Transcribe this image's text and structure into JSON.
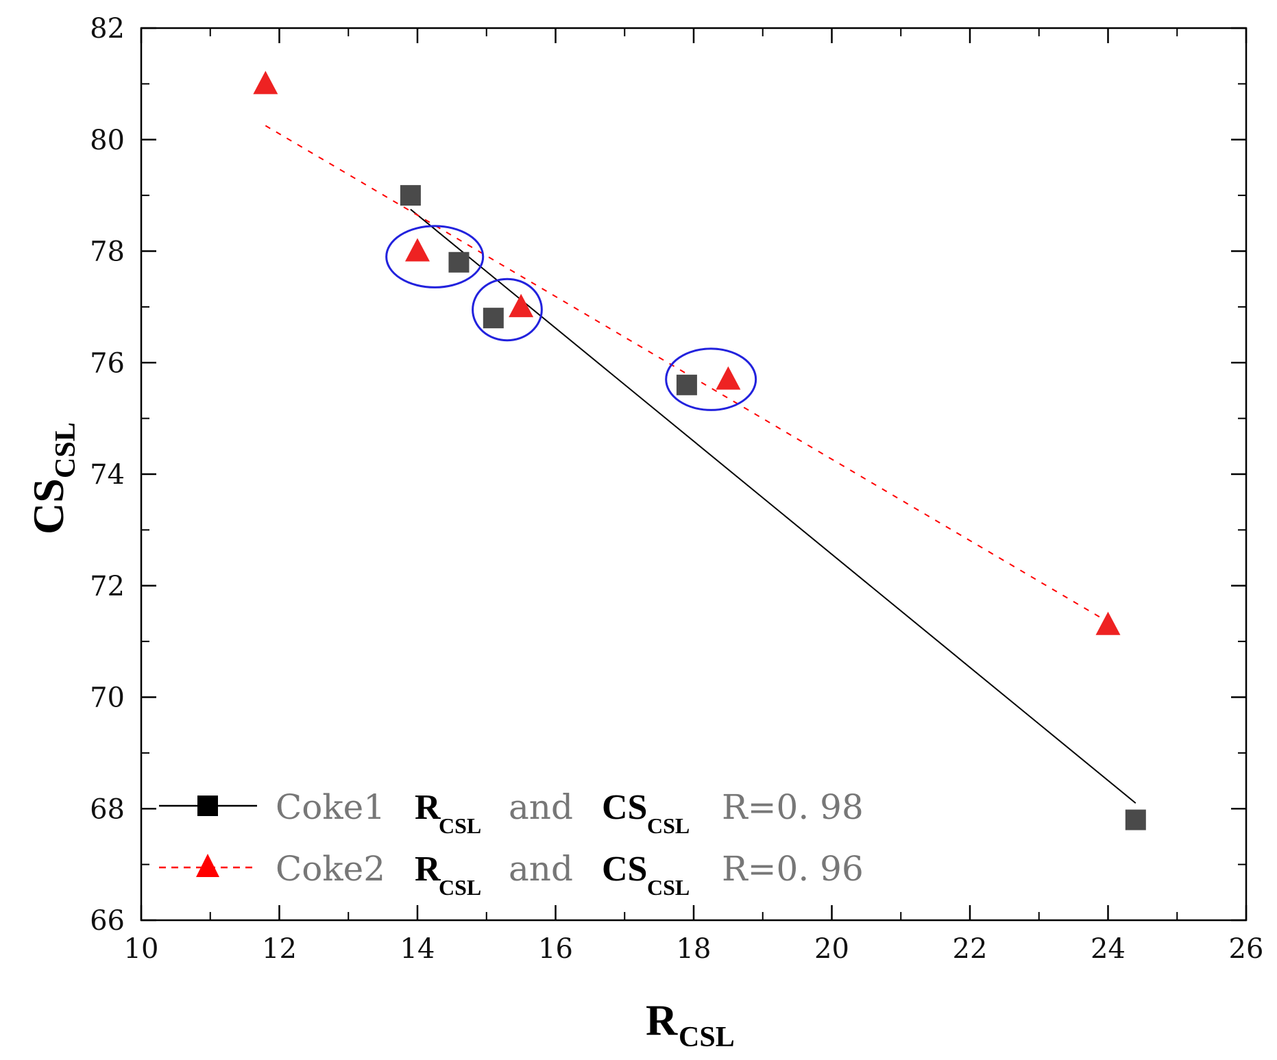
{
  "chart_data": {
    "type": "scatter",
    "title": "",
    "xlabel": {
      "main": "R",
      "sub": "CSL"
    },
    "ylabel": {
      "main": "CS",
      "sub": "CSL"
    },
    "xlim": [
      10,
      26
    ],
    "ylim": [
      66,
      82
    ],
    "xticks": [
      10,
      12,
      14,
      16,
      18,
      20,
      22,
      24,
      26
    ],
    "yticks": [
      66,
      68,
      70,
      72,
      74,
      76,
      78,
      80,
      82
    ],
    "grid": false,
    "legend_position": "bottom-left",
    "series": [
      {
        "name": "Coke1",
        "marker": "square",
        "color": "#4a4a4a",
        "line_color": "#000000",
        "line_style": "solid",
        "x": [
          13.9,
          14.6,
          15.1,
          17.9,
          24.4
        ],
        "y": [
          79.0,
          77.8,
          76.8,
          75.6,
          67.8
        ],
        "fit_line": {
          "x": [
            13.9,
            24.4
          ],
          "y": [
            78.75,
            68.1
          ]
        },
        "legend": {
          "name": "Coke1",
          "r_main": "R",
          "r_sub": "CSL",
          "and": "and",
          "cs_main": "CS",
          "cs_sub": "CSL",
          "r_value": "R=0. 98"
        }
      },
      {
        "name": "Coke2",
        "marker": "triangle",
        "color": "#ee2222",
        "line_color": "#ff0000",
        "line_style": "dashed",
        "x": [
          11.8,
          14.0,
          15.5,
          18.5,
          24.0
        ],
        "y": [
          81.0,
          78.0,
          77.0,
          75.7,
          71.3
        ],
        "fit_line": {
          "x": [
            11.8,
            24.0
          ],
          "y": [
            80.25,
            71.35
          ]
        },
        "legend": {
          "name": "Coke2",
          "r_main": "R",
          "r_sub": "CSL",
          "and": "and",
          "cs_main": "CS",
          "cs_sub": "CSL",
          "r_value": "R=0. 96"
        }
      }
    ],
    "annotations": [
      {
        "type": "ellipse",
        "color": "#2222dd",
        "cx": 14.25,
        "cy": 77.9,
        "rx": 0.7,
        "ry": 0.55
      },
      {
        "type": "ellipse",
        "color": "#2222dd",
        "cx": 15.3,
        "cy": 76.95,
        "rx": 0.5,
        "ry": 0.55
      },
      {
        "type": "ellipse",
        "color": "#2222dd",
        "cx": 18.25,
        "cy": 75.7,
        "rx": 0.65,
        "ry": 0.55
      }
    ]
  }
}
